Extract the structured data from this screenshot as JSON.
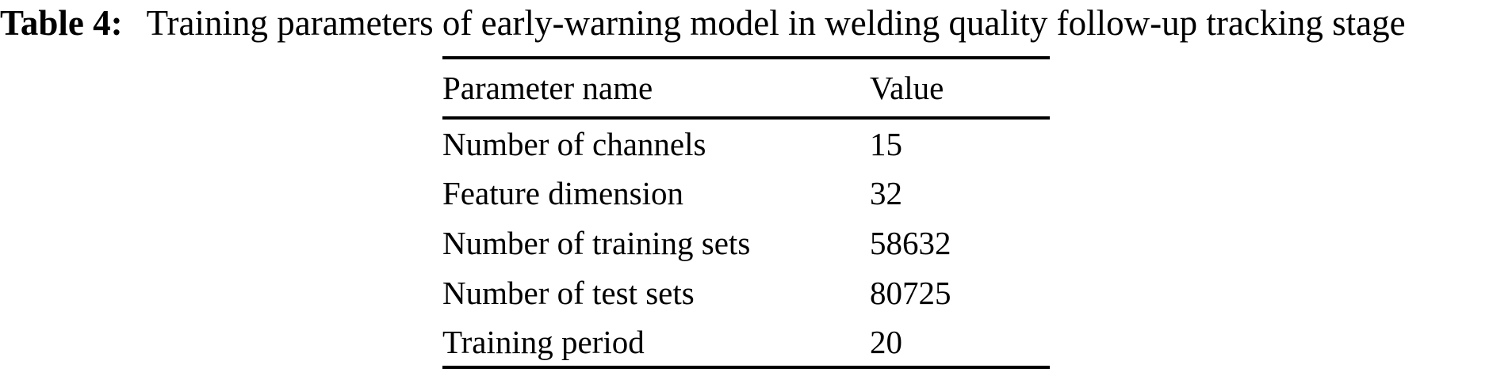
{
  "caption": {
    "label": "Table 4:",
    "text": "Training parameters of early-warning model in welding quality follow-up tracking stage"
  },
  "table": {
    "columns": [
      "Parameter name",
      "Value"
    ],
    "rows": [
      {
        "parameter": "Number of channels",
        "value": "15"
      },
      {
        "parameter": "Feature dimension",
        "value": "32"
      },
      {
        "parameter": "Number of training sets",
        "value": "58632"
      },
      {
        "parameter": "Number of test sets",
        "value": "80725"
      },
      {
        "parameter": "Training period",
        "value": "20"
      }
    ]
  },
  "colors": {
    "background": "#ffffff",
    "text": "#000000",
    "rule": "#000000"
  }
}
